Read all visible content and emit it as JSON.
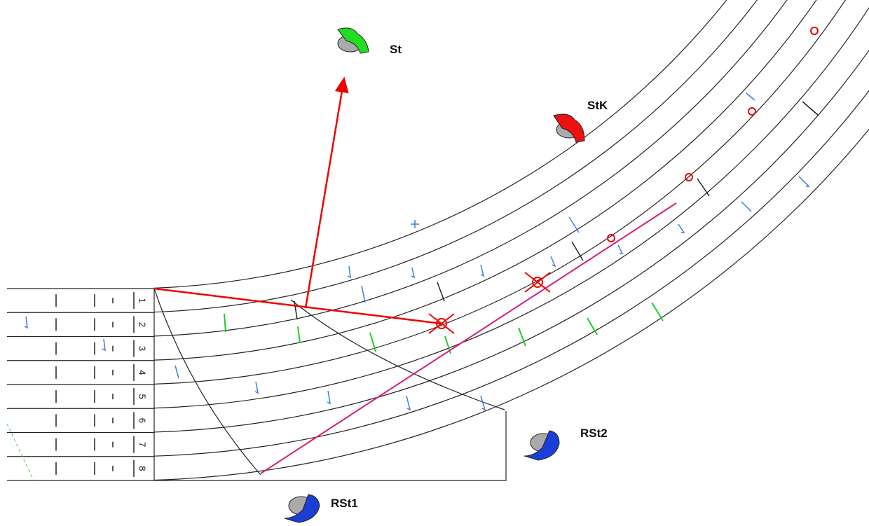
{
  "cameras": [
    {
      "label": "St"
    },
    {
      "label": "StK"
    },
    {
      "label": "RSt1"
    },
    {
      "label": "RSt2"
    }
  ],
  "lanes": [
    "1",
    "2",
    "3",
    "4",
    "5",
    "6",
    "7",
    "8"
  ]
}
